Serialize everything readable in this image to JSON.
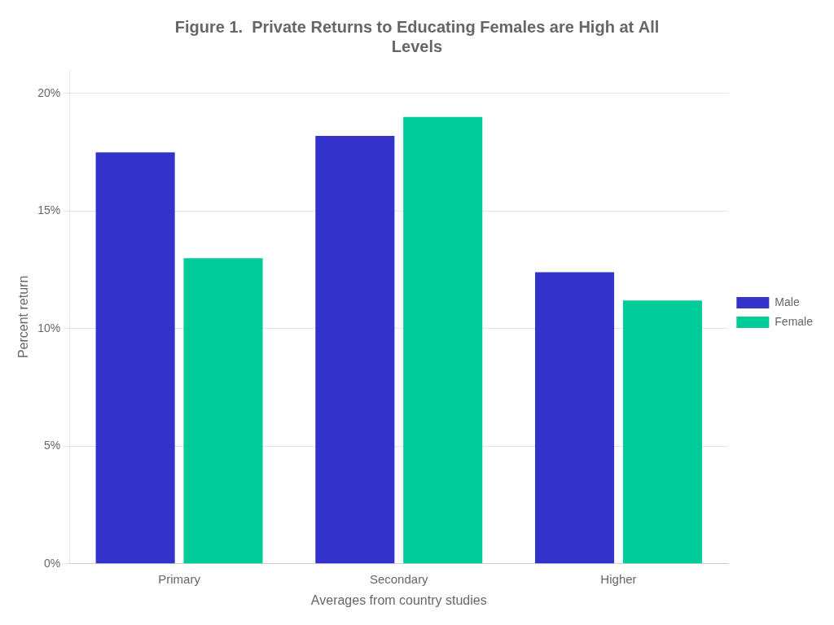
{
  "chart_data": {
    "type": "bar",
    "title": [
      "Figure 1.  Private Returns to Educating Females are High at All",
      "Levels"
    ],
    "categories": [
      "Primary",
      "Secondary",
      "Higher"
    ],
    "series": [
      {
        "name": "Male",
        "color": "#3333CC",
        "values": [
          17.5,
          18.2,
          12.4
        ]
      },
      {
        "name": "Female",
        "color": "#00CC99",
        "values": [
          13.0,
          19.0,
          11.2
        ]
      }
    ],
    "ylabel": "Percent return",
    "xlabel": "Averages from country studies",
    "ylim": [
      0,
      21
    ],
    "yticks": [
      {
        "value": 0,
        "label": "0%"
      },
      {
        "value": 5,
        "label": "5%"
      },
      {
        "value": 10,
        "label": "10%"
      },
      {
        "value": 15,
        "label": "15%"
      },
      {
        "value": 20,
        "label": "20%"
      }
    ],
    "grid": true,
    "legend": "right"
  }
}
